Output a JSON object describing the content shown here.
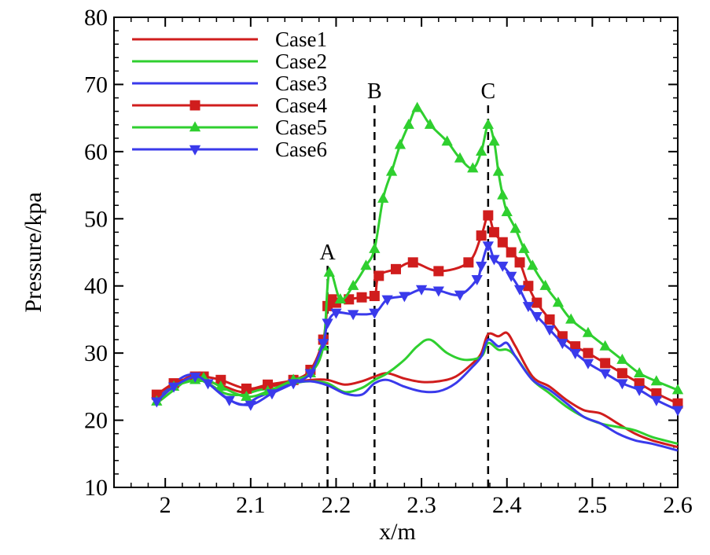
{
  "chart_data": {
    "type": "line",
    "xlabel": "x/m",
    "ylabel": "Pressure/kpa",
    "xlim": [
      1.94,
      2.6
    ],
    "ylim": [
      10,
      80
    ],
    "xticks": [
      {
        "value": 2.0,
        "label": "2"
      },
      {
        "value": 2.1,
        "label": "2.1"
      },
      {
        "value": 2.2,
        "label": "2.2"
      },
      {
        "value": 2.3,
        "label": "2.3"
      },
      {
        "value": 2.4,
        "label": "2.4"
      },
      {
        "value": 2.5,
        "label": "2.5"
      },
      {
        "value": 2.6,
        "label": "2.6"
      }
    ],
    "yticks": [
      {
        "value": 10,
        "label": "10"
      },
      {
        "value": 20,
        "label": "20"
      },
      {
        "value": 30,
        "label": "30"
      },
      {
        "value": 40,
        "label": "40"
      },
      {
        "value": 50,
        "label": "50"
      },
      {
        "value": 60,
        "label": "60"
      },
      {
        "value": 70,
        "label": "70"
      },
      {
        "value": 80,
        "label": "80"
      }
    ],
    "grid": false,
    "legend_position": "top-left",
    "vertical_markers": [
      {
        "label": "A",
        "x": 2.19,
        "y_top": 43
      },
      {
        "label": "B",
        "x": 2.245,
        "y_top": 67
      },
      {
        "label": "C",
        "x": 2.378,
        "y_top": 67
      }
    ],
    "series": [
      {
        "name": "Case1",
        "color": "#d01d1d",
        "marker": "none",
        "x": [
          1.99,
          2.01,
          2.03,
          2.05,
          2.07,
          2.09,
          2.11,
          2.13,
          2.15,
          2.17,
          2.19,
          2.21,
          2.23,
          2.245,
          2.26,
          2.28,
          2.3,
          2.32,
          2.34,
          2.36,
          2.37,
          2.378,
          2.39,
          2.4,
          2.41,
          2.43,
          2.45,
          2.47,
          2.49,
          2.51,
          2.53,
          2.55,
          2.57,
          2.6
        ],
        "y": [
          23.5,
          25.0,
          26.5,
          25.8,
          25.0,
          24.2,
          24.8,
          25.2,
          25.6,
          26.0,
          26.0,
          25.3,
          25.8,
          26.5,
          27.0,
          26.2,
          25.7,
          25.8,
          26.5,
          28.5,
          30.0,
          32.8,
          32.5,
          33.0,
          31.0,
          26.5,
          25.0,
          23.0,
          21.5,
          21.0,
          19.5,
          18.0,
          17.0,
          16.0
        ]
      },
      {
        "name": "Case2",
        "color": "#2fcf2f",
        "marker": "none",
        "x": [
          1.99,
          2.01,
          2.03,
          2.05,
          2.07,
          2.09,
          2.11,
          2.13,
          2.15,
          2.17,
          2.19,
          2.21,
          2.23,
          2.245,
          2.26,
          2.28,
          2.295,
          2.31,
          2.33,
          2.35,
          2.37,
          2.378,
          2.39,
          2.4,
          2.41,
          2.43,
          2.45,
          2.47,
          2.49,
          2.51,
          2.53,
          2.55,
          2.57,
          2.6
        ],
        "y": [
          22.5,
          24.5,
          26.2,
          25.5,
          24.0,
          23.8,
          24.5,
          24.8,
          25.5,
          25.8,
          25.5,
          24.2,
          24.8,
          26.0,
          27.0,
          29.0,
          31.0,
          32.0,
          30.0,
          29.0,
          29.5,
          31.5,
          30.5,
          30.5,
          29.5,
          26.0,
          24.0,
          22.0,
          20.5,
          19.5,
          19.0,
          18.5,
          17.5,
          16.5
        ]
      },
      {
        "name": "Case3",
        "color": "#3a3aeb",
        "marker": "none",
        "x": [
          1.99,
          2.01,
          2.03,
          2.05,
          2.07,
          2.09,
          2.11,
          2.13,
          2.15,
          2.17,
          2.19,
          2.21,
          2.23,
          2.245,
          2.26,
          2.28,
          2.3,
          2.32,
          2.34,
          2.36,
          2.37,
          2.378,
          2.39,
          2.4,
          2.41,
          2.43,
          2.45,
          2.47,
          2.49,
          2.51,
          2.53,
          2.55,
          2.57,
          2.6
        ],
        "y": [
          23.0,
          25.5,
          26.8,
          25.5,
          23.5,
          22.3,
          23.5,
          24.5,
          25.5,
          25.8,
          25.2,
          24.0,
          23.8,
          25.5,
          26.0,
          25.0,
          24.3,
          24.3,
          25.5,
          28.0,
          29.5,
          32.0,
          31.0,
          31.5,
          29.5,
          26.0,
          24.5,
          22.5,
          20.5,
          19.5,
          18.0,
          17.0,
          16.5,
          15.5
        ]
      },
      {
        "name": "Case4",
        "color": "#d01d1d",
        "marker": "square",
        "x": [
          1.99,
          2.01,
          2.035,
          2.045,
          2.065,
          2.095,
          2.12,
          2.15,
          2.17,
          2.185,
          2.19,
          2.195,
          2.2,
          2.215,
          2.23,
          2.245,
          2.25,
          2.27,
          2.29,
          2.32,
          2.355,
          2.37,
          2.378,
          2.385,
          2.395,
          2.405,
          2.415,
          2.425,
          2.435,
          2.45,
          2.465,
          2.48,
          2.495,
          2.515,
          2.535,
          2.555,
          2.575,
          2.6
        ],
        "y": [
          23.8,
          25.5,
          26.5,
          26.5,
          26.0,
          24.7,
          25.3,
          26.0,
          27.5,
          32.0,
          37.0,
          38.0,
          37.5,
          38.0,
          38.3,
          38.5,
          41.5,
          42.5,
          43.5,
          42.2,
          43.5,
          47.5,
          50.5,
          48.0,
          46.5,
          45.0,
          43.5,
          40.0,
          37.5,
          35.0,
          32.5,
          31.0,
          30.0,
          28.5,
          27.0,
          25.5,
          24.0,
          22.5
        ]
      },
      {
        "name": "Case5",
        "color": "#2fcf2f",
        "marker": "triangle-up",
        "x": [
          1.99,
          2.01,
          2.035,
          2.045,
          2.065,
          2.095,
          2.12,
          2.15,
          2.17,
          2.185,
          2.192,
          2.205,
          2.22,
          2.235,
          2.245,
          2.255,
          2.265,
          2.275,
          2.285,
          2.295,
          2.31,
          2.33,
          2.345,
          2.36,
          2.37,
          2.378,
          2.385,
          2.39,
          2.395,
          2.4,
          2.41,
          2.42,
          2.43,
          2.445,
          2.46,
          2.475,
          2.495,
          2.515,
          2.535,
          2.555,
          2.575,
          2.6
        ],
        "y": [
          22.8,
          25.0,
          26.0,
          26.3,
          25.0,
          23.5,
          24.3,
          26.0,
          27.0,
          31.0,
          42.0,
          38.0,
          40.0,
          43.0,
          45.5,
          53.0,
          57.0,
          61.0,
          64.0,
          66.5,
          64.0,
          61.5,
          59.0,
          57.5,
          60.0,
          64.0,
          61.5,
          57.0,
          53.5,
          51.0,
          48.5,
          45.5,
          43.0,
          40.0,
          37.5,
          35.0,
          33.0,
          31.0,
          29.0,
          27.0,
          25.8,
          24.5
        ]
      },
      {
        "name": "Case6",
        "color": "#3a3aeb",
        "marker": "triangle-down",
        "x": [
          1.99,
          2.01,
          2.035,
          2.05,
          2.075,
          2.1,
          2.125,
          2.15,
          2.17,
          2.185,
          2.19,
          2.2,
          2.22,
          2.245,
          2.26,
          2.28,
          2.3,
          2.32,
          2.345,
          2.365,
          2.37,
          2.378,
          2.385,
          2.395,
          2.405,
          2.415,
          2.425,
          2.435,
          2.45,
          2.465,
          2.48,
          2.495,
          2.515,
          2.535,
          2.555,
          2.575,
          2.6
        ],
        "y": [
          22.8,
          25.0,
          26.5,
          25.5,
          23.0,
          22.3,
          24.0,
          25.5,
          27.0,
          31.5,
          34.5,
          36.0,
          35.8,
          36.0,
          38.0,
          38.5,
          39.5,
          39.3,
          38.7,
          41.0,
          43.0,
          46.0,
          44.0,
          43.0,
          41.5,
          39.5,
          37.0,
          35.5,
          33.5,
          31.5,
          30.0,
          28.5,
          27.0,
          25.5,
          24.5,
          23.0,
          21.5
        ]
      }
    ]
  }
}
